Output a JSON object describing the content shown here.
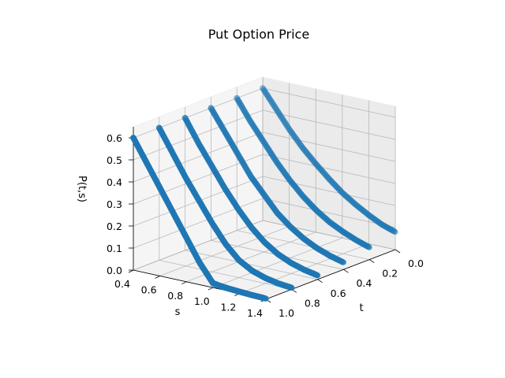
{
  "chart_data": {
    "type": "scatter",
    "projection": "3d",
    "title": "Put Option Price",
    "xlabel": "s",
    "ylabel": "t",
    "zlabel": "P(t,s)",
    "xlim": [
      0.4,
      1.4
    ],
    "ylim": [
      0.0,
      1.0
    ],
    "zlim": [
      0.0,
      0.6
    ],
    "xticks": [
      "0.4",
      "0.6",
      "0.8",
      "1.0",
      "1.2",
      "1.4"
    ],
    "yticks": [
      "0.0",
      "0.2",
      "0.4",
      "0.6",
      "0.8",
      "1.0"
    ],
    "zticks": [
      "0.0",
      "0.1",
      "0.2",
      "0.3",
      "0.4",
      "0.5",
      "0.6"
    ],
    "grid": true,
    "marker_color": "#1f77b4",
    "series": [
      {
        "t": 1.0,
        "s": [
          0.4,
          0.5,
          0.6,
          0.7,
          0.8,
          0.9,
          1.0,
          1.05,
          1.1,
          1.2,
          1.3,
          1.4
        ],
        "p": [
          0.6,
          0.5,
          0.4,
          0.3,
          0.2,
          0.1,
          0.02,
          0.015,
          0.012,
          0.008,
          0.005,
          0.003
        ]
      },
      {
        "t": 0.8,
        "s": [
          0.4,
          0.5,
          0.6,
          0.7,
          0.8,
          0.9,
          1.0,
          1.1,
          1.2,
          1.3,
          1.4
        ],
        "p": [
          0.6,
          0.5,
          0.4,
          0.31,
          0.22,
          0.14,
          0.08,
          0.045,
          0.025,
          0.013,
          0.007
        ]
      },
      {
        "t": 0.6,
        "s": [
          0.4,
          0.5,
          0.6,
          0.7,
          0.8,
          0.9,
          1.0,
          1.1,
          1.2,
          1.3,
          1.4
        ],
        "p": [
          0.6,
          0.5,
          0.41,
          0.32,
          0.24,
          0.17,
          0.115,
          0.075,
          0.048,
          0.03,
          0.018
        ]
      },
      {
        "t": 0.4,
        "s": [
          0.4,
          0.5,
          0.6,
          0.7,
          0.8,
          0.9,
          1.0,
          1.1,
          1.2,
          1.3,
          1.4
        ],
        "p": [
          0.6,
          0.51,
          0.42,
          0.33,
          0.26,
          0.19,
          0.14,
          0.1,
          0.07,
          0.048,
          0.032
        ]
      },
      {
        "t": 0.2,
        "s": [
          0.4,
          0.5,
          0.6,
          0.7,
          0.8,
          0.9,
          1.0,
          1.1,
          1.2,
          1.3,
          1.4
        ],
        "p": [
          0.6,
          0.51,
          0.43,
          0.35,
          0.28,
          0.22,
          0.17,
          0.13,
          0.1,
          0.075,
          0.055
        ]
      },
      {
        "t": 0.0,
        "s": [
          0.4,
          0.5,
          0.6,
          0.7,
          0.8,
          0.9,
          1.0,
          1.1,
          1.2,
          1.3,
          1.4
        ],
        "p": [
          0.6,
          0.52,
          0.44,
          0.37,
          0.31,
          0.255,
          0.205,
          0.165,
          0.13,
          0.1,
          0.08
        ]
      }
    ]
  }
}
